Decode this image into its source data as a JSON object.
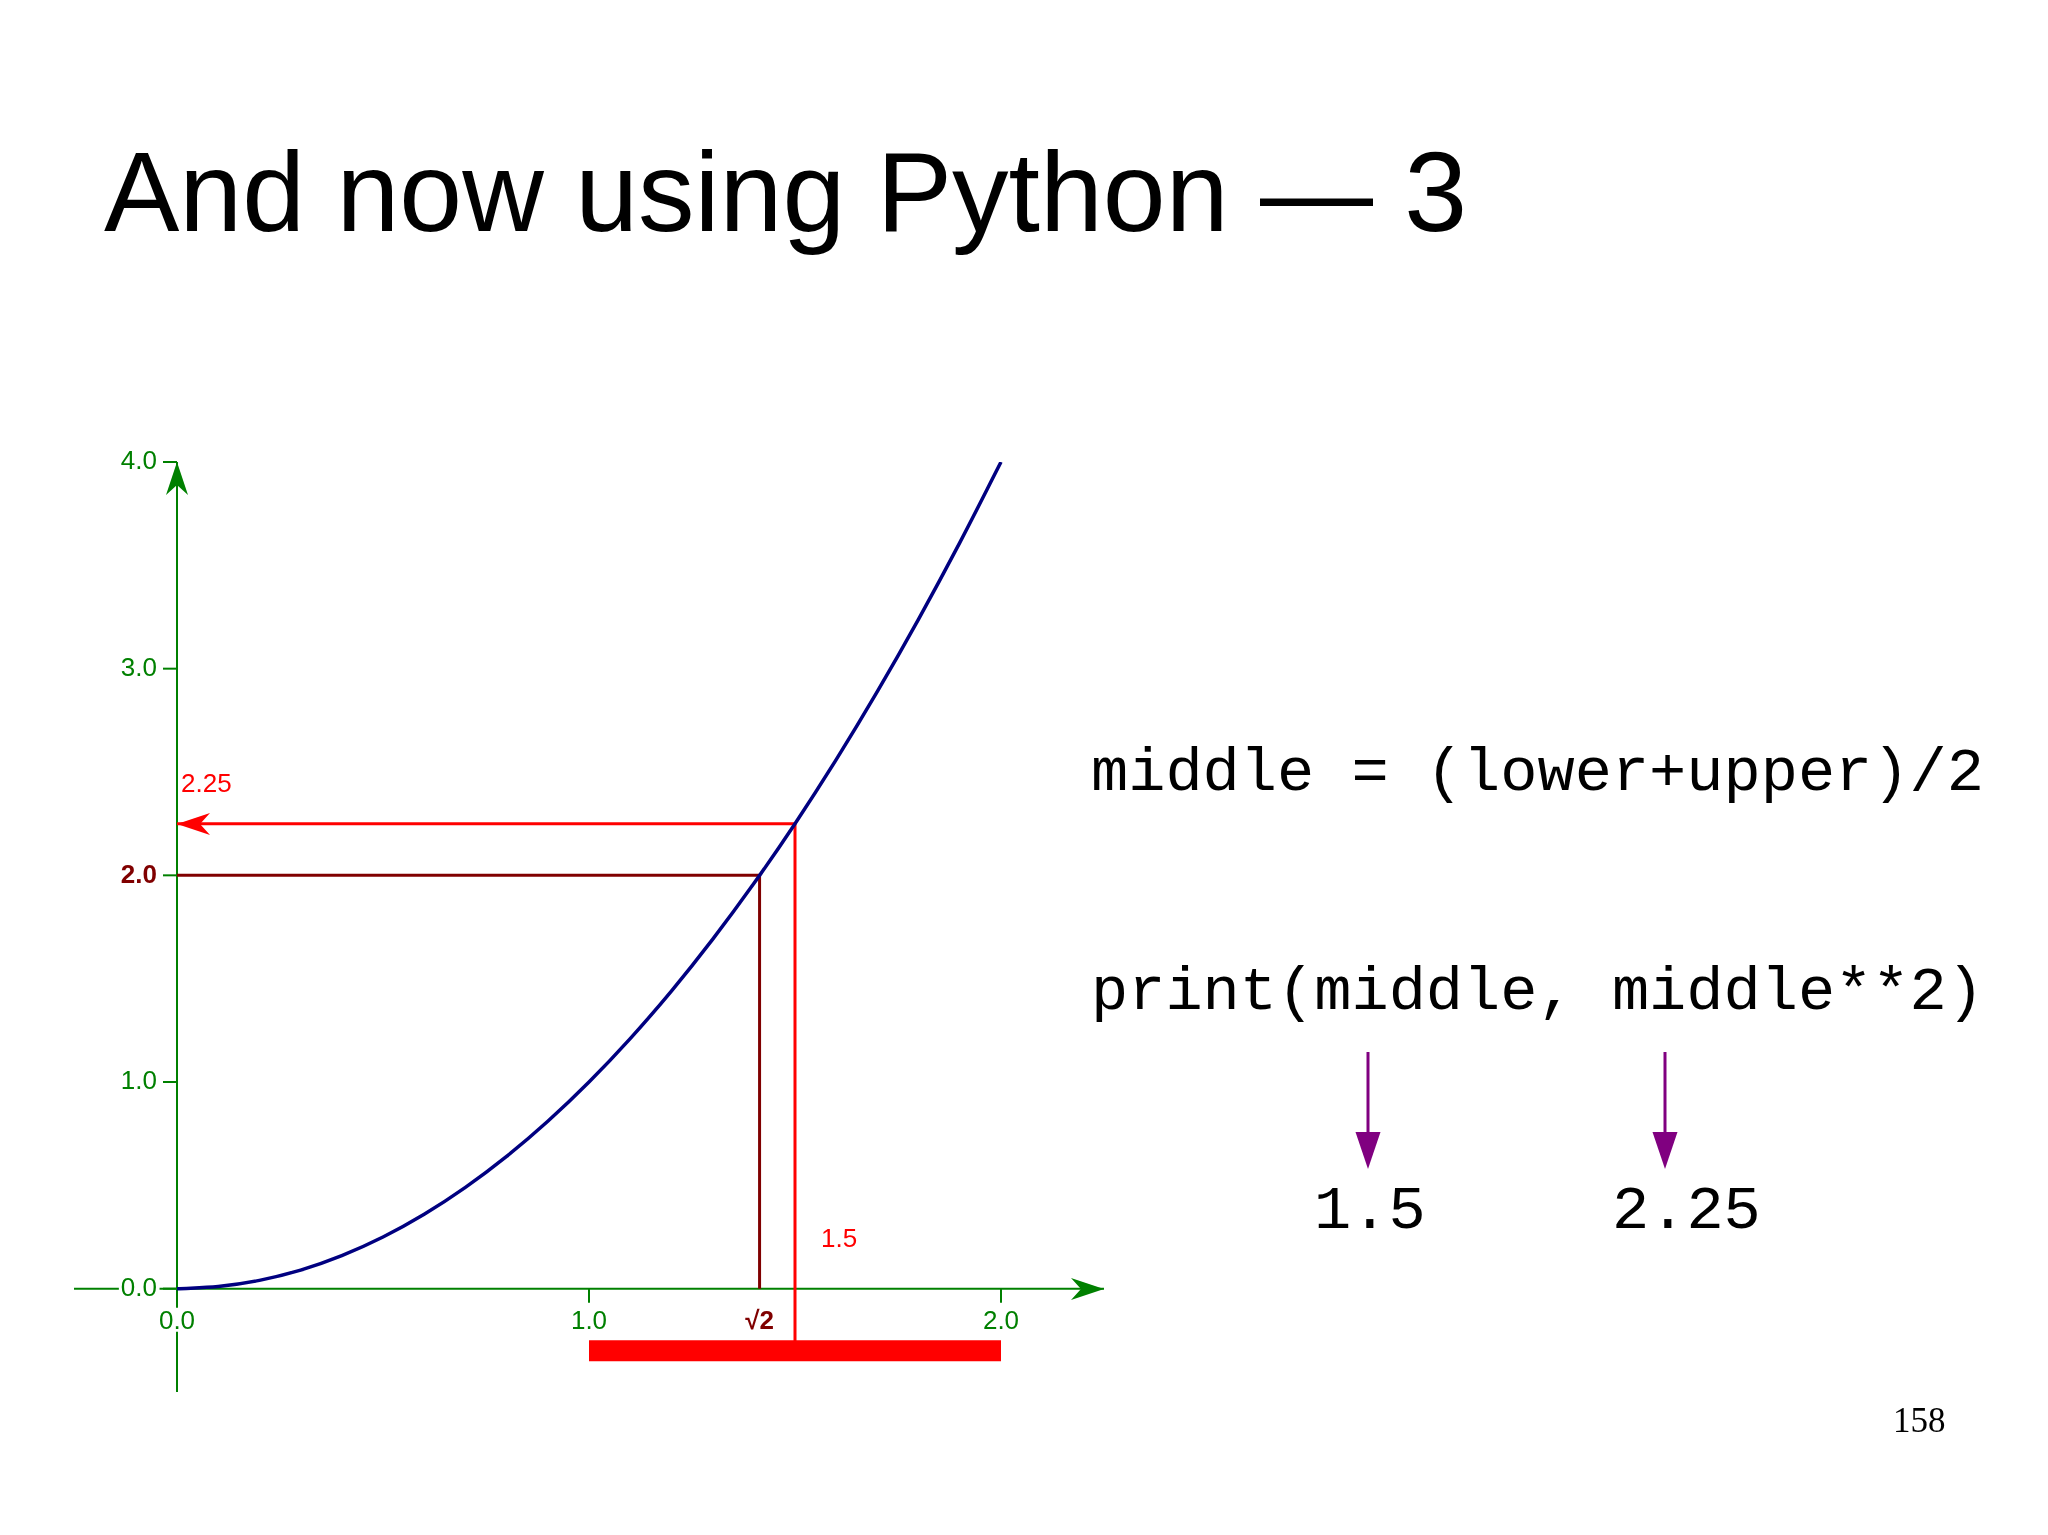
{
  "chart_data": {
    "type": "line",
    "title": "And now using Python — 3",
    "series": [
      {
        "color": "#000080",
        "x": [
          0,
          0.1,
          0.2,
          0.3,
          0.4,
          0.5,
          0.6,
          0.7,
          0.8,
          0.9,
          1.0,
          1.1,
          1.2,
          1.3,
          1.4,
          1.5,
          1.6,
          1.7,
          1.8,
          1.9,
          2.0
        ],
        "values": [
          0,
          0.01,
          0.04,
          0.09,
          0.16,
          0.25,
          0.36,
          0.49,
          0.64,
          0.81,
          1.0,
          1.21,
          1.44,
          1.69,
          1.96,
          2.25,
          2.56,
          2.89,
          3.24,
          3.61,
          4.0
        ]
      },
      {
        "color": "#ff0000",
        "x": [
          1,
          2
        ],
        "values": [
          -0.3,
          -0.3
        ]
      }
    ],
    "xlim": [
      -0.25,
      2.25
    ],
    "ylim": [
      -0.5,
      4
    ],
    "xticks": [
      {
        "value": 0,
        "label": "0.0"
      },
      {
        "value": 1,
        "label": "1.0"
      },
      {
        "value": 2,
        "label": "2.0"
      }
    ],
    "yticks": [
      {
        "value": 0,
        "label": "0.0"
      },
      {
        "value": 1,
        "label": "1.0"
      },
      {
        "value": 2,
        "label": "2.0"
      },
      {
        "value": 3,
        "label": "3.0"
      },
      {
        "value": 4,
        "label": "4.0"
      }
    ],
    "ref_lines": [
      {
        "axis": "x",
        "value": 1.414,
        "label": "√2",
        "color": "#800000"
      },
      {
        "axis": "y",
        "value": 2,
        "color": "#800000"
      },
      {
        "axis": "x",
        "value": 1.5,
        "label": "1.5",
        "color": "#ff0000"
      },
      {
        "axis": "y",
        "value": 2.25,
        "label": "2.25",
        "color": "#ff0000"
      }
    ],
    "annotations": [
      "middle = (lower+upper)/2",
      "print(middle, middle**2)",
      "1.5",
      "2.25",
      "158"
    ]
  }
}
